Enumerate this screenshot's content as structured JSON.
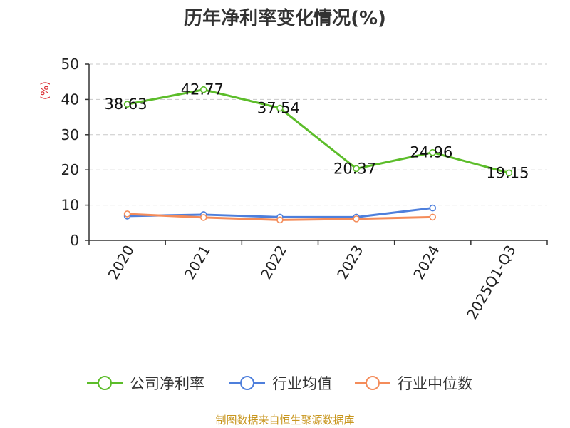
{
  "chart_data": {
    "type": "line",
    "title": "历年净利率变化情况(%)",
    "ylabel": "(%)",
    "categories": [
      "2020",
      "2021",
      "2022",
      "2023",
      "2024",
      "2025Q1-Q3"
    ],
    "ylim": [
      0,
      50
    ],
    "yticks": [
      0,
      10,
      20,
      30,
      40,
      50
    ],
    "grid": true,
    "legend_position": "bottom",
    "series": [
      {
        "name": "公司净利率",
        "color": "#5cbd2a",
        "values": [
          38.63,
          42.77,
          37.54,
          20.37,
          24.96,
          19.15
        ],
        "labels": [
          "38.63",
          "42.77",
          "37.54",
          "20.37",
          "24.96",
          "19.15"
        ]
      },
      {
        "name": "行业均值",
        "color": "#4e7fdc",
        "values": [
          6.9,
          7.3,
          6.6,
          6.6,
          9.2,
          null
        ]
      },
      {
        "name": "行业中位数",
        "color": "#f48c5a",
        "values": [
          7.5,
          6.5,
          5.8,
          6.1,
          6.6,
          null
        ]
      }
    ]
  },
  "source": "制图数据来自恒生聚源数据库",
  "colors": {
    "title": "#333333",
    "ylabel": "#d9262c",
    "source": "#c8961e",
    "axis": "#333333",
    "grid": "#c8c8c8"
  }
}
